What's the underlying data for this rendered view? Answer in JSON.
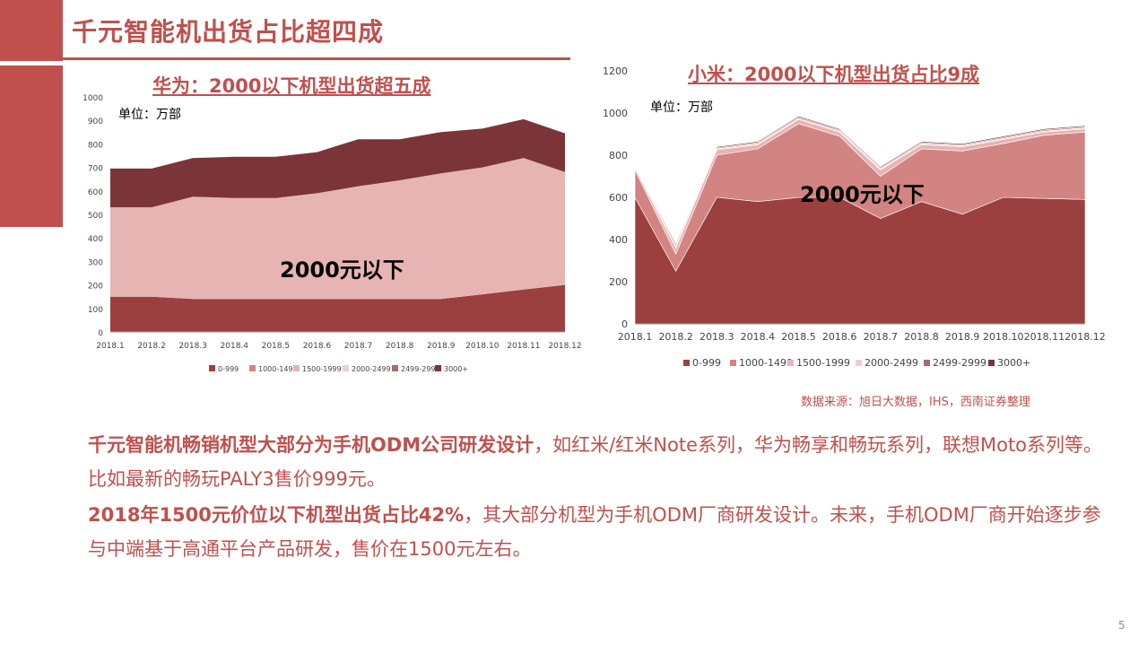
{
  "slide_title": "千元智能机出货占比超四成",
  "page_number": "5",
  "source": "数据来源：旭日大数据，IHS，西南证券整理",
  "colors": {
    "accent": "#c0504d",
    "s0": "#9b3f3f",
    "s1": "#d28482",
    "s2": "#e6b5b3",
    "s3": "#efcfcd",
    "s4": "#a86a6a",
    "s5": "#7b3438"
  },
  "paragraphs": [
    {
      "bold": "千元智能机畅销机型大部分为手机ODM公司研发设计",
      "normal": "，如红米/红米Note系列，华为畅享和畅玩系列，联想Moto系列等。比如最新的畅玩PALY3售价999元。"
    },
    {
      "bold": "2018年1500元价位以下机型出货占比42%",
      "normal": "，其大部分机型为手机ODM厂商研发设计。未来，手机ODM厂商开始逐步参与中端基于高通平台产品研发，售价在1500元左右。"
    }
  ],
  "chart_data": [
    {
      "type": "area",
      "stacked": true,
      "title": "华为：2000以下机型出货超五成",
      "unit_label": "单位：万部",
      "annotation": "2000元以下",
      "categories": [
        "2018.1",
        "2018.2",
        "2018.3",
        "2018.4",
        "2018.5",
        "2018.6",
        "2018.7",
        "2018.8",
        "2018.9",
        "2018.10",
        "2018.11",
        "2018.12"
      ],
      "ylim": [
        0,
        1000
      ],
      "yticks": [
        0,
        100,
        200,
        300,
        400,
        500,
        600,
        700,
        800,
        900,
        1000
      ],
      "legend_position": "bottom",
      "series": [
        {
          "name": "0-999",
          "values": [
            150,
            150,
            140,
            140,
            140,
            140,
            140,
            140,
            140,
            160,
            180,
            200
          ]
        },
        {
          "name": "1000-1499",
          "values": [
            0,
            0,
            0,
            0,
            0,
            0,
            0,
            0,
            0,
            0,
            0,
            0
          ]
        },
        {
          "name": "1500-1999",
          "values": [
            380,
            380,
            435,
            430,
            430,
            450,
            480,
            505,
            535,
            540,
            560,
            480
          ]
        },
        {
          "name": "2000-2499",
          "values": [
            0,
            0,
            0,
            0,
            0,
            0,
            0,
            0,
            0,
            0,
            0,
            0
          ]
        },
        {
          "name": "2499-2999",
          "values": [
            0,
            0,
            0,
            0,
            0,
            0,
            0,
            0,
            0,
            0,
            0,
            0
          ]
        },
        {
          "name": "3000+",
          "values": [
            165,
            165,
            165,
            175,
            175,
            175,
            200,
            175,
            175,
            165,
            165,
            165
          ]
        }
      ]
    },
    {
      "type": "area",
      "stacked": true,
      "title": "小米：2000以下机型出货占比9成",
      "unit_label": "单位：万部",
      "annotation": "2000元以下",
      "categories": [
        "2018.1",
        "2018.2",
        "2018.3",
        "2018.4",
        "2018.5",
        "2018.6",
        "2018.7",
        "2018.8",
        "2018.9",
        "2018.10",
        "2018.11",
        "2018.12"
      ],
      "ylim": [
        0,
        1200
      ],
      "yticks": [
        0,
        200,
        400,
        600,
        800,
        1000,
        1200
      ],
      "legend_position": "bottom",
      "series": [
        {
          "name": "0-999",
          "values": [
            600,
            250,
            600,
            580,
            600,
            600,
            500,
            580,
            520,
            600,
            595,
            590
          ]
        },
        {
          "name": "1000-1499",
          "values": [
            130,
            80,
            200,
            250,
            350,
            290,
            200,
            250,
            300,
            255,
            300,
            320
          ]
        },
        {
          "name": "1500-1999",
          "values": [
            10,
            30,
            25,
            20,
            20,
            20,
            30,
            20,
            20,
            20,
            15,
            15
          ]
        },
        {
          "name": "2000-2499",
          "values": [
            5,
            10,
            5,
            5,
            5,
            5,
            5,
            5,
            5,
            5,
            5,
            5
          ]
        },
        {
          "name": "2499-2999",
          "values": [
            5,
            10,
            5,
            5,
            5,
            5,
            5,
            5,
            5,
            5,
            5,
            5
          ]
        },
        {
          "name": "3000+",
          "values": [
            3,
            5,
            5,
            5,
            5,
            5,
            5,
            5,
            5,
            5,
            5,
            5
          ]
        }
      ]
    }
  ]
}
